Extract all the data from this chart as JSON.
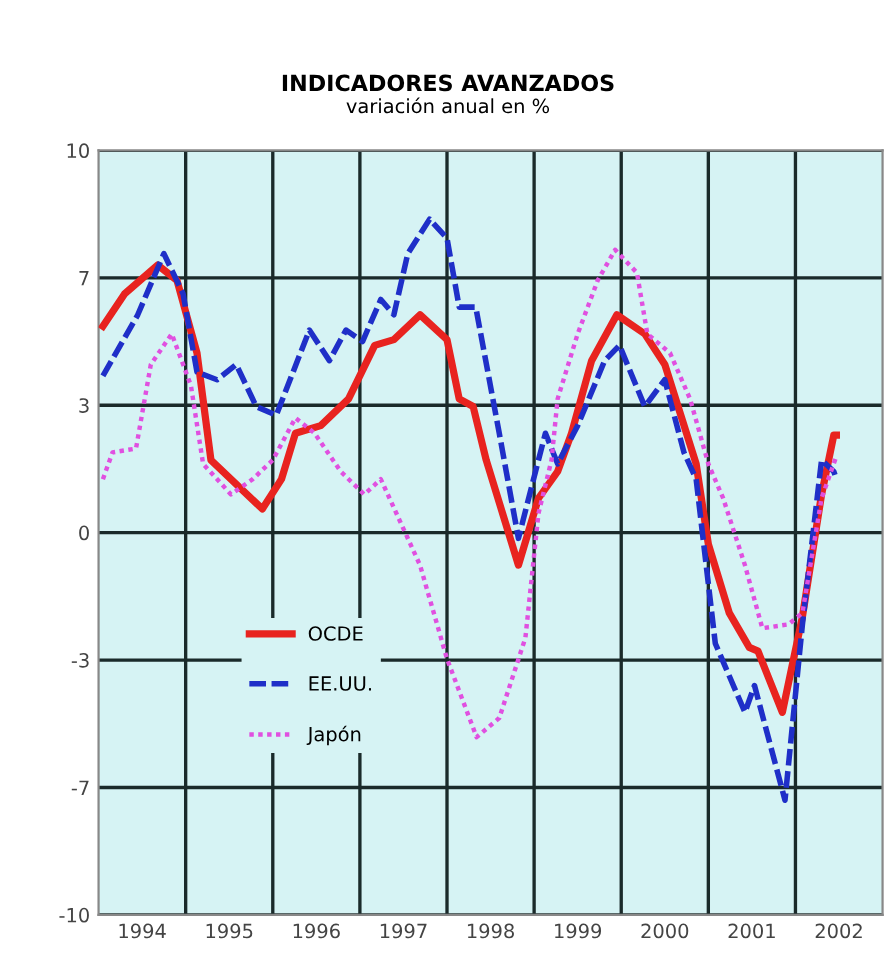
{
  "chart_data": {
    "type": "line",
    "title": "INDICADORES AVANZADOS",
    "subtitle": "variación anual en %",
    "xlim": [
      1994,
      2003
    ],
    "xticks": [
      {
        "value": 1994.5,
        "label": "1994"
      },
      {
        "value": 1995.5,
        "label": "1995"
      },
      {
        "value": 1996.5,
        "label": "1996"
      },
      {
        "value": 1997.5,
        "label": "1997"
      },
      {
        "value": 1998.5,
        "label": "1998"
      },
      {
        "value": 1999.5,
        "label": "1999"
      },
      {
        "value": 2000.5,
        "label": "2000"
      },
      {
        "value": 2001.5,
        "label": "2001"
      },
      {
        "value": 2002.5,
        "label": "2002"
      },
      {
        "value": 1995,
        "label": null
      },
      {
        "value": 1996,
        "label": null
      },
      {
        "value": 1997,
        "label": null
      },
      {
        "value": 1998,
        "label": null
      },
      {
        "value": 1999,
        "label": null
      },
      {
        "value": 2000,
        "label": null
      },
      {
        "value": 2001,
        "label": null
      },
      {
        "value": 2002,
        "label": null
      }
    ],
    "ylim": [
      -10,
      10
    ],
    "yticks": [
      {
        "value": -10,
        "label": "-10"
      },
      {
        "value": -6.667,
        "label": "-7"
      },
      {
        "value": -3.333,
        "label": "-3"
      },
      0,
      {
        "value": 3.333,
        "label": "3"
      },
      {
        "value": 6.667,
        "label": "7"
      },
      {
        "value": 10,
        "label": "10"
      }
    ],
    "grid": true,
    "legend": "center left",
    "series": [
      {
        "name": "OCDE",
        "color": "#e8231f",
        "line_style": "solid",
        "x": [
          1994.05,
          1994.3,
          1994.68,
          1994.9,
          1995.13,
          1995.29,
          1995.88,
          1996.1,
          1996.26,
          1996.55,
          1996.87,
          1997.17,
          1997.39,
          1997.69,
          1998.0,
          1998.14,
          1998.3,
          1998.45,
          1998.82,
          1999.05,
          1999.27,
          1999.43,
          1999.66,
          1999.95,
          2000.27,
          2000.5,
          2000.86,
          2001.0,
          2001.24,
          2001.47,
          2001.57,
          2001.85,
          2002.08,
          2002.3,
          2002.44,
          2002.47
        ],
        "values": [
          5.4,
          6.25,
          7.0,
          6.6,
          4.7,
          1.9,
          0.62,
          1.4,
          2.6,
          2.8,
          3.5,
          4.9,
          5.05,
          5.7,
          5.05,
          3.5,
          3.3,
          1.9,
          -0.85,
          0.9,
          1.6,
          2.6,
          4.5,
          5.7,
          5.2,
          4.4,
          1.8,
          -0.3,
          -2.1,
          -3.0,
          -3.1,
          -4.7,
          -2.2,
          1.0,
          2.55,
          2.55
        ]
      },
      {
        "name": "EE.UU.",
        "color": "#1f2fc8",
        "line_style": "dashed",
        "x": [
          1994.05,
          1994.45,
          1994.75,
          1994.97,
          1995.13,
          1995.36,
          1995.58,
          1995.81,
          1996.04,
          1996.42,
          1996.65,
          1996.84,
          1997.03,
          1997.24,
          1997.39,
          1997.55,
          1997.8,
          1998.0,
          1998.14,
          1998.33,
          1998.6,
          1998.82,
          1999.05,
          1999.13,
          1999.27,
          1999.5,
          1999.81,
          1999.98,
          2000.27,
          2000.5,
          2000.72,
          2000.86,
          2001.08,
          2001.42,
          2001.53,
          2001.88,
          2002.08,
          2002.3,
          2002.44,
          2002.47
        ],
        "values": [
          4.1,
          5.7,
          7.3,
          6.25,
          4.2,
          4.0,
          4.4,
          3.3,
          3.07,
          5.3,
          4.5,
          5.3,
          5.0,
          6.1,
          5.7,
          7.3,
          8.2,
          7.7,
          5.9,
          5.9,
          2.6,
          -0.15,
          1.9,
          2.6,
          1.8,
          2.8,
          4.5,
          4.9,
          3.3,
          4.0,
          2.1,
          1.4,
          -2.9,
          -4.7,
          -4.0,
          -7.0,
          -2.4,
          1.9,
          1.6,
          1.4
        ]
      },
      {
        "name": "Japón",
        "color": "#e050e0",
        "line_style": "dotted",
        "x": [
          1994.05,
          1994.16,
          1994.43,
          1994.6,
          1994.84,
          1995.06,
          1995.2,
          1995.52,
          1995.77,
          1996.0,
          1996.26,
          1996.48,
          1996.78,
          1997.05,
          1997.24,
          1997.69,
          1998.0,
          1998.34,
          1998.6,
          1998.9,
          1999.05,
          1999.2,
          1999.27,
          1999.5,
          1999.73,
          1999.93,
          2000.18,
          2000.3,
          2000.56,
          2000.79,
          2001.0,
          2001.17,
          2001.42,
          2001.62,
          2001.92,
          2002.08,
          2002.3,
          2002.47
        ],
        "values": [
          1.4,
          2.1,
          2.2,
          4.4,
          5.2,
          3.85,
          1.8,
          1.0,
          1.4,
          1.9,
          3.0,
          2.6,
          1.6,
          1.0,
          1.4,
          -0.85,
          -3.3,
          -5.35,
          -4.85,
          -2.75,
          0.5,
          1.9,
          3.5,
          5.2,
          6.6,
          7.4,
          6.8,
          5.2,
          4.7,
          3.5,
          1.8,
          0.9,
          -0.85,
          -2.5,
          -2.4,
          -2.1,
          0.9,
          2.0
        ]
      }
    ]
  }
}
